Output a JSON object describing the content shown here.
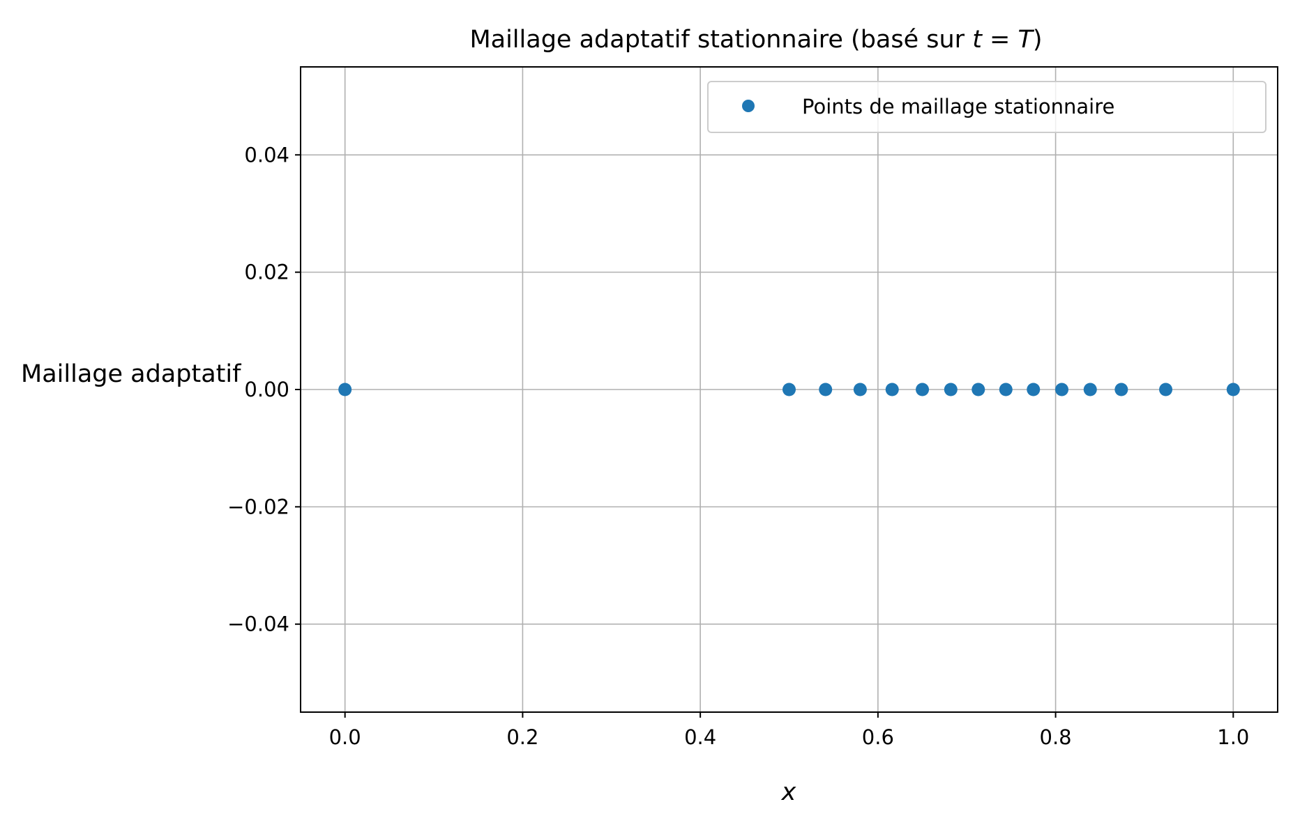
{
  "chart_data": {
    "type": "scatter",
    "title": {
      "main": "Maillage adaptatif stationnaire (basé sur ",
      "math": "t = T",
      "end": ")"
    },
    "xlabel": "x",
    "ylabel": "Maillage adaptatif",
    "xlim": [
      -0.05,
      1.05
    ],
    "ylim": [
      -0.055,
      0.055
    ],
    "x_ticks": [
      0.0,
      0.2,
      0.4,
      0.6,
      0.8,
      1.0
    ],
    "x_tick_labels": [
      "0.0",
      "0.2",
      "0.4",
      "0.6",
      "0.8",
      "1.0"
    ],
    "y_ticks": [
      0.04,
      0.02,
      0.0,
      -0.02,
      -0.04
    ],
    "y_tick_labels": [
      "0.04",
      "0.02",
      "0.00",
      "−0.02",
      "−0.04"
    ],
    "grid": true,
    "legend_position": "top-right",
    "series": [
      {
        "name": "Points de maillage stationnaire",
        "color": "#1f77b4",
        "marker": "circle",
        "x": [
          0.0,
          0.5,
          0.541,
          0.58,
          0.616,
          0.65,
          0.682,
          0.713,
          0.744,
          0.775,
          0.807,
          0.839,
          0.874,
          0.924,
          1.0
        ],
        "y": [
          0,
          0,
          0,
          0,
          0,
          0,
          0,
          0,
          0,
          0,
          0,
          0,
          0,
          0,
          0
        ]
      }
    ]
  },
  "colors": {
    "grid": "#b0b0b0",
    "axes": "#000000",
    "legend_border": "#cccccc"
  }
}
